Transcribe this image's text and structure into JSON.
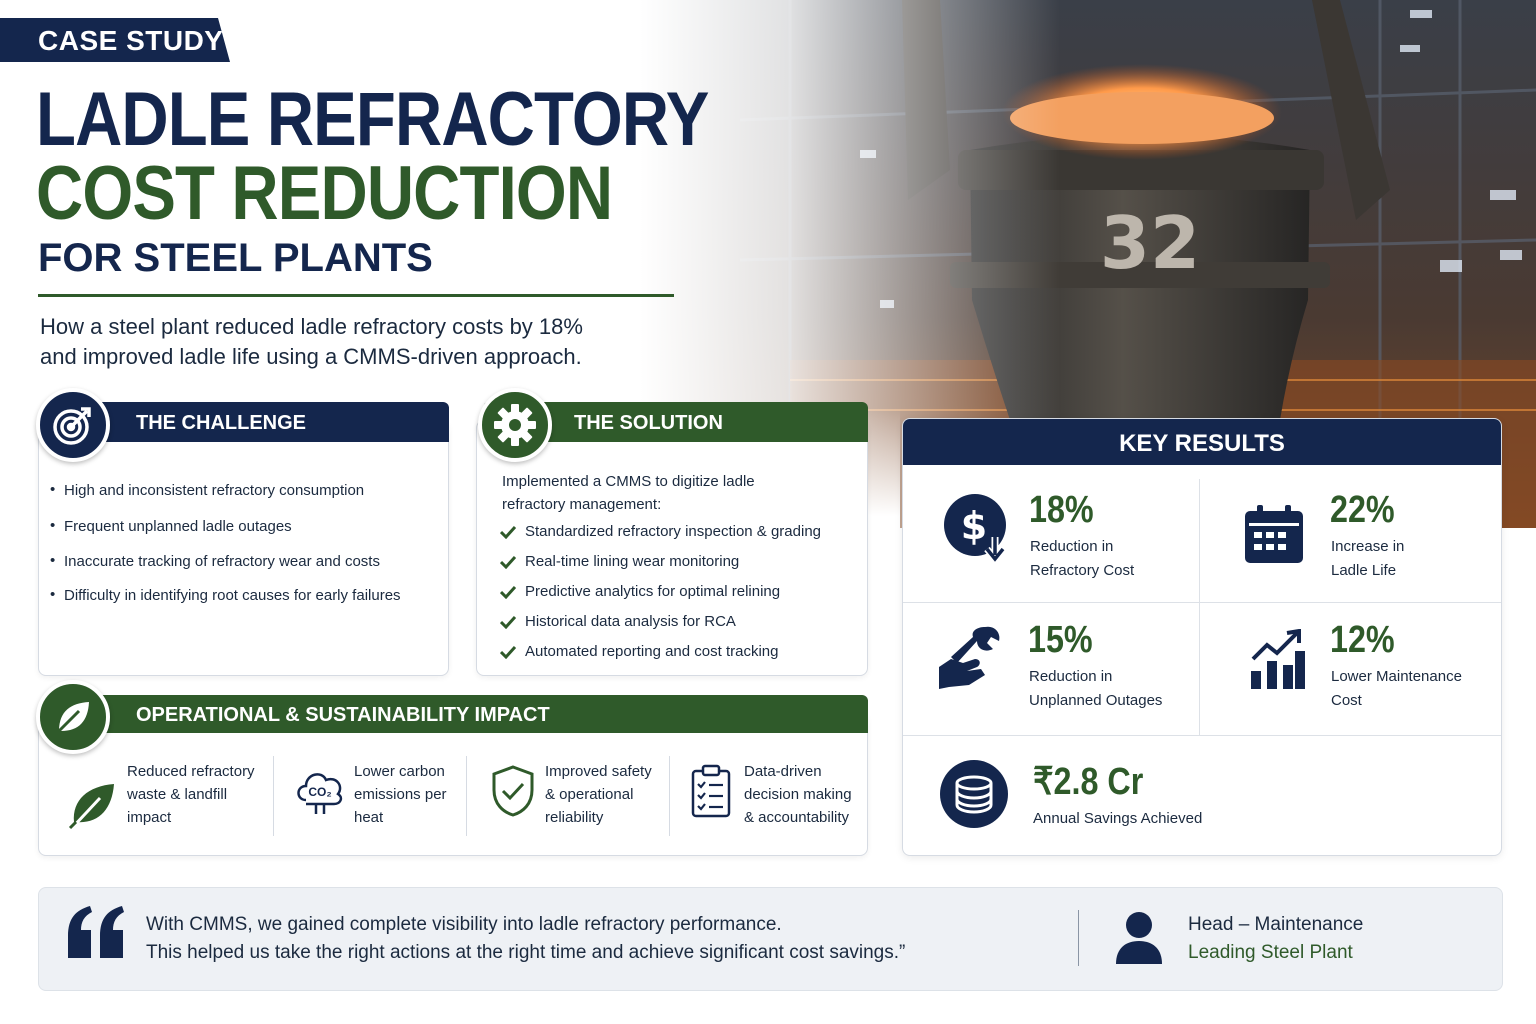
{
  "header": {
    "tag": "CASE STUDY",
    "title_line1": "LADLE REFRACTORY",
    "title_line2": "COST REDUCTION",
    "title_line3": "FOR STEEL PLANTS",
    "lead_line1": "How a steel plant reduced ladle refractory costs by 18%",
    "lead_line2": "and improved ladle life using a CMMS-driven approach."
  },
  "hero": {
    "ladle_number": "32"
  },
  "challenge": {
    "title": "THE CHALLENGE",
    "icon": "target-icon",
    "items": [
      "High and inconsistent refractory consumption",
      "Frequent unplanned ladle outages",
      "Inaccurate tracking of refractory wear and costs",
      "Difficulty in identifying root causes for early failures"
    ]
  },
  "solution": {
    "title": "THE SOLUTION",
    "icon": "gear-icon",
    "intro_line1": "Implemented a CMMS to digitize ladle",
    "intro_line2": "refractory management:",
    "items": [
      "Standardized refractory inspection & grading",
      "Real-time lining wear monitoring",
      "Predictive analytics for optimal relining",
      "Historical data analysis for RCA",
      "Automated reporting and cost tracking"
    ]
  },
  "impact": {
    "title": "OPERATIONAL & SUSTAINABILITY IMPACT",
    "icon": "leaf-icon",
    "items": [
      {
        "icon": "leaf-icon",
        "lines": [
          "Reduced refractory",
          "waste & landfill",
          "impact"
        ]
      },
      {
        "icon": "co2-cloud-icon",
        "icon_text": "CO₂",
        "lines": [
          "Lower carbon",
          "emissions per",
          "heat"
        ]
      },
      {
        "icon": "shield-check-icon",
        "lines": [
          "Improved safety",
          "& operational",
          "reliability"
        ]
      },
      {
        "icon": "clipboard-checklist-icon",
        "lines": [
          "Data-driven",
          "decision making",
          "& accountability"
        ]
      }
    ]
  },
  "key_results": {
    "title": "KEY RESULTS",
    "items": [
      {
        "value": "18%",
        "line1": "Reduction in",
        "line2": "Refractory Cost",
        "icon": "dollar-down-icon"
      },
      {
        "value": "22%",
        "line1": "Increase in",
        "line2": "Ladle Life",
        "icon": "calendar-icon"
      },
      {
        "value": "15%",
        "line1": "Reduction in",
        "line2": "Unplanned Outages",
        "icon": "wrench-hand-icon"
      },
      {
        "value": "12%",
        "line1": "Lower Maintenance",
        "line2": "Cost",
        "icon": "growth-chart-icon"
      }
    ],
    "savings": {
      "value": "₹2.8 Cr",
      "label": "Annual Savings Achieved",
      "icon": "coins-stack-icon"
    }
  },
  "quote": {
    "line1": "With CMMS, we gained complete visibility into ladle refractory performance.",
    "line2": "This helped us take the right actions at the right time and achieve significant cost savings.”",
    "role": "Head – Maintenance",
    "org": "Leading Steel Plant"
  },
  "colors": {
    "navy": "#14264d",
    "green": "#2f5a2a",
    "text": "#1b2a3f"
  }
}
